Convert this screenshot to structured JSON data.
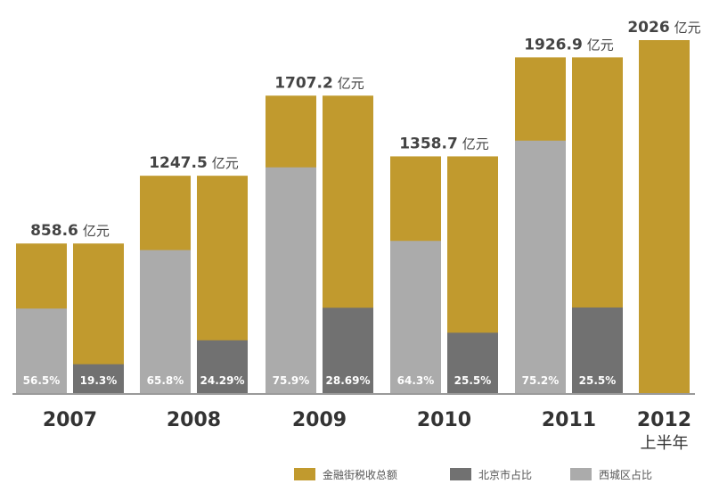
{
  "chart_data": {
    "type": "bar",
    "unit": "亿元",
    "colors": {
      "total": "#C19A2E",
      "beijing": "#717171",
      "xicheng": "#ABABAB",
      "baseline": "#9A9A9A"
    },
    "legend": {
      "placement": "bottom-right",
      "items": [
        {
          "key": "total",
          "label": "金融街税收总额"
        },
        {
          "key": "beijing",
          "label": "北京市占比"
        },
        {
          "key": "xicheng",
          "label": "西城区占比"
        }
      ]
    },
    "categories": [
      {
        "year": "2007",
        "sub": "",
        "total": 858.6,
        "total_label": "858.6",
        "xicheng_pct": 56.5,
        "xicheng_label": "56.5%",
        "beijing_pct": 19.3,
        "beijing_label": "19.3%"
      },
      {
        "year": "2008",
        "sub": "",
        "total": 1247.5,
        "total_label": "1247.5",
        "xicheng_pct": 65.8,
        "xicheng_label": "65.8%",
        "beijing_pct": 24.29,
        "beijing_label": "24.29%"
      },
      {
        "year": "2009",
        "sub": "",
        "total": 1707.2,
        "total_label": "1707.2",
        "xicheng_pct": 75.9,
        "xicheng_label": "75.9%",
        "beijing_pct": 28.69,
        "beijing_label": "28.69%"
      },
      {
        "year": "2010",
        "sub": "",
        "total": 1358.7,
        "total_label": "1358.7",
        "xicheng_pct": 64.3,
        "xicheng_label": "64.3%",
        "beijing_pct": 25.5,
        "beijing_label": "25.5%"
      },
      {
        "year": "2011",
        "sub": "",
        "total": 1926.9,
        "total_label": "1926.9",
        "xicheng_pct": 75.2,
        "xicheng_label": "75.2%",
        "beijing_pct": 25.5,
        "beijing_label": "25.5%"
      },
      {
        "year": "2012",
        "sub": "上半年",
        "total": 2026,
        "total_label": "2026",
        "xicheng_pct": null,
        "xicheng_label": "",
        "beijing_pct": null,
        "beijing_label": ""
      }
    ]
  }
}
